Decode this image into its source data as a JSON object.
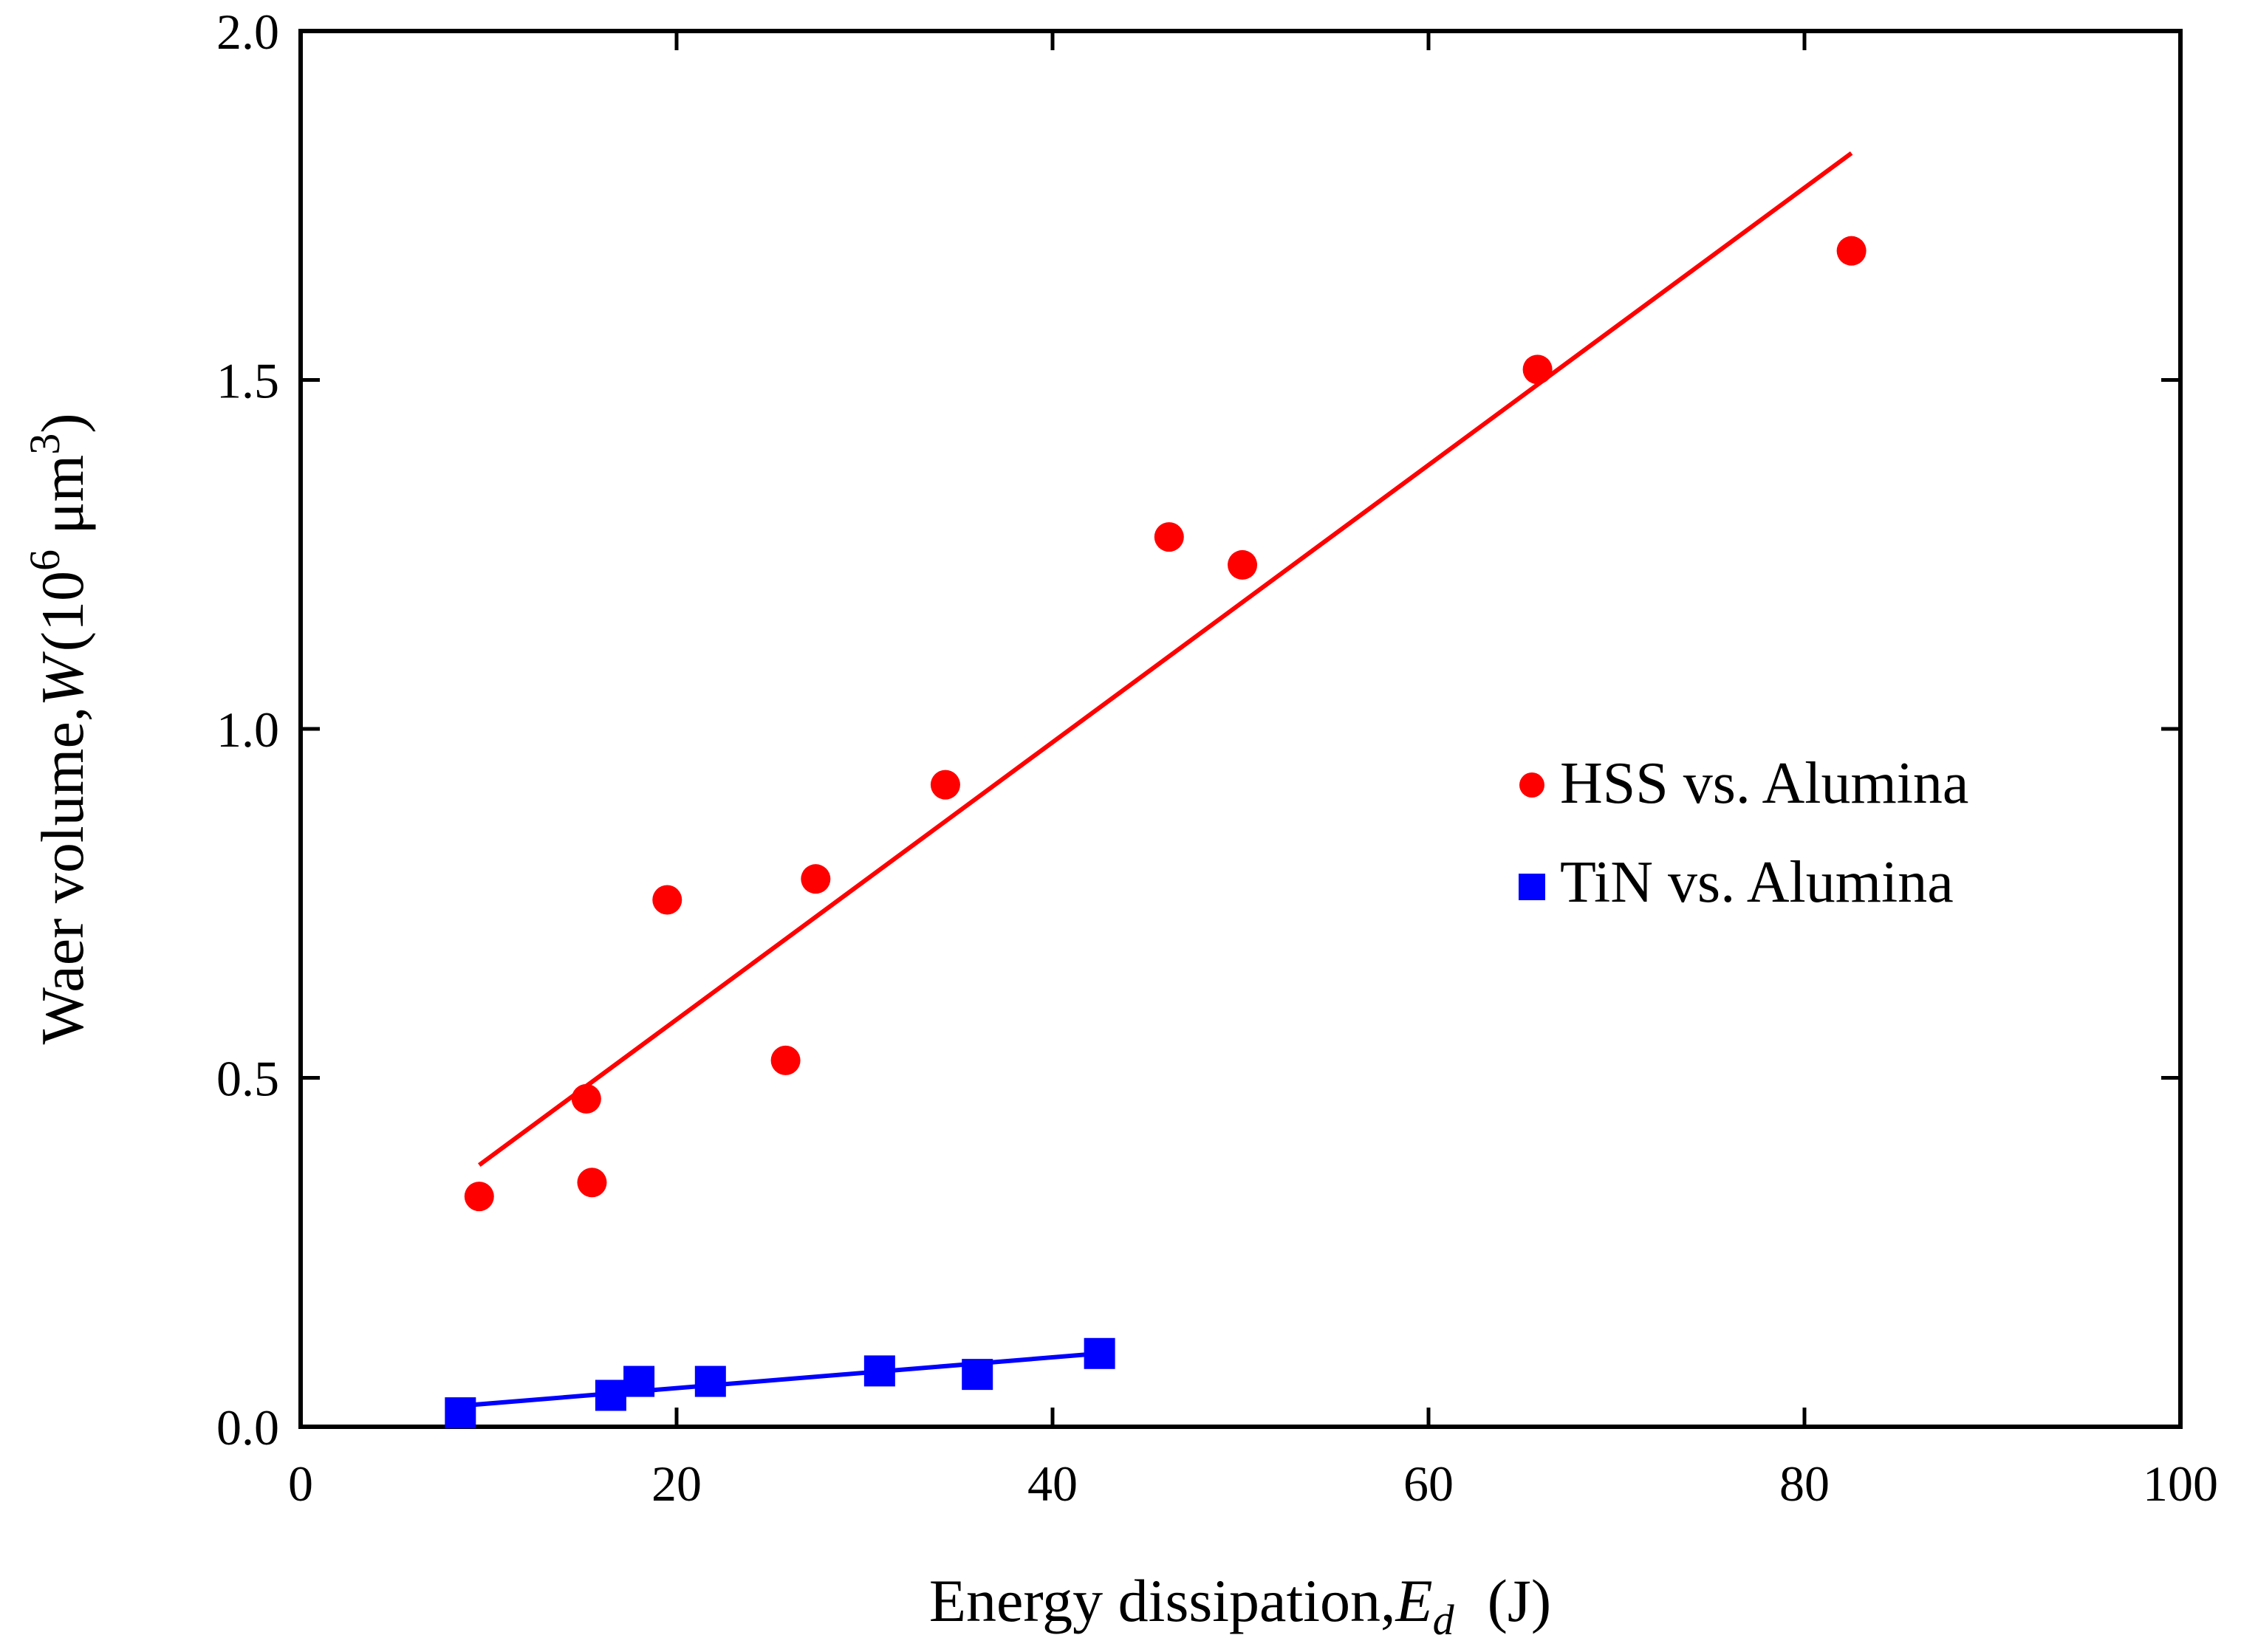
{
  "chart_data": {
    "type": "scatter",
    "title": "",
    "xlabel": {
      "main": "Energy dissipation,",
      "symbol": "E",
      "subscript": "d",
      "unit": "(J)"
    },
    "ylabel": {
      "main": "Waer volume,",
      "symbol": "W",
      "unit_open": "(10",
      "exp1": "6",
      "unit_mid": " μm",
      "exp2": "3",
      "unit_close": ")"
    },
    "xlim": [
      0,
      100
    ],
    "ylim": [
      0,
      2.0
    ],
    "xticks": [
      0,
      20,
      40,
      60,
      80,
      100
    ],
    "xtick_labels": [
      "0",
      "20",
      "40",
      "60",
      "80",
      "100"
    ],
    "yticks": [
      0,
      0.5,
      1.0,
      1.5,
      2.0
    ],
    "ytick_labels": [
      "0.0",
      "0.5",
      "1.0",
      "1.5",
      "2.0"
    ],
    "grid": false,
    "legend_position": "right-middle",
    "series": [
      {
        "name": "HSS vs. Alumina",
        "marker": "circle",
        "color": "#ff0000",
        "points": [
          [
            9.5,
            0.33
          ],
          [
            15.2,
            0.47
          ],
          [
            15.5,
            0.35
          ],
          [
            19.5,
            0.755
          ],
          [
            25.8,
            0.525
          ],
          [
            27.4,
            0.785
          ],
          [
            34.3,
            0.92
          ],
          [
            46.2,
            1.275
          ],
          [
            50.1,
            1.235
          ],
          [
            65.8,
            1.515
          ],
          [
            82.5,
            1.685
          ]
        ],
        "fit": [
          [
            9.5,
            0.375
          ],
          [
            82.5,
            1.825
          ]
        ]
      },
      {
        "name": "TiN vs. Alumina",
        "marker": "square",
        "color": "#0000ff",
        "points": [
          [
            8.5,
            0.02
          ],
          [
            16.5,
            0.045
          ],
          [
            18.0,
            0.065
          ],
          [
            21.8,
            0.065
          ],
          [
            30.8,
            0.08
          ],
          [
            36.0,
            0.075
          ],
          [
            42.5,
            0.105
          ]
        ],
        "fit": [
          [
            8.5,
            0.03
          ],
          [
            42.5,
            0.105
          ]
        ]
      }
    ]
  }
}
